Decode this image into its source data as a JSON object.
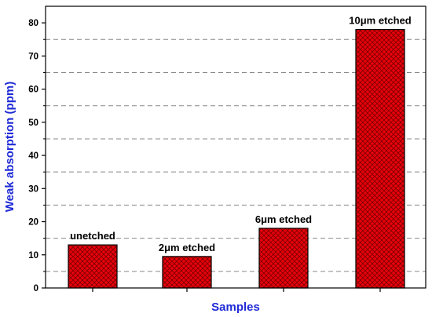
{
  "chart_data": {
    "type": "bar",
    "title": "",
    "xlabel": "Samples",
    "ylabel": "Weak absorption (ppm)",
    "categories": [
      "unetched",
      "2μm etched",
      "6μm etched",
      "10μm etched"
    ],
    "values": [
      13,
      9.5,
      18,
      78
    ],
    "data_labels": [
      "unetched",
      "2μm etched",
      "6μm etched",
      "10μm etched"
    ],
    "ylim": [
      0,
      85
    ],
    "yticks": [
      0,
      10,
      20,
      30,
      40,
      50,
      60,
      70,
      80
    ],
    "ytick_labels": [
      "0",
      "10",
      "20",
      "30",
      "40",
      "50",
      "60",
      "70",
      "80"
    ],
    "y_gridlines": [
      5,
      15,
      25,
      35,
      45,
      55,
      65,
      75
    ],
    "grid": "dashed horizontal",
    "bar_fill": "#e8000b",
    "bar_pattern": "crosshatch",
    "axis_title_color": "#1f2bd6",
    "gridline_color": "#888888"
  }
}
